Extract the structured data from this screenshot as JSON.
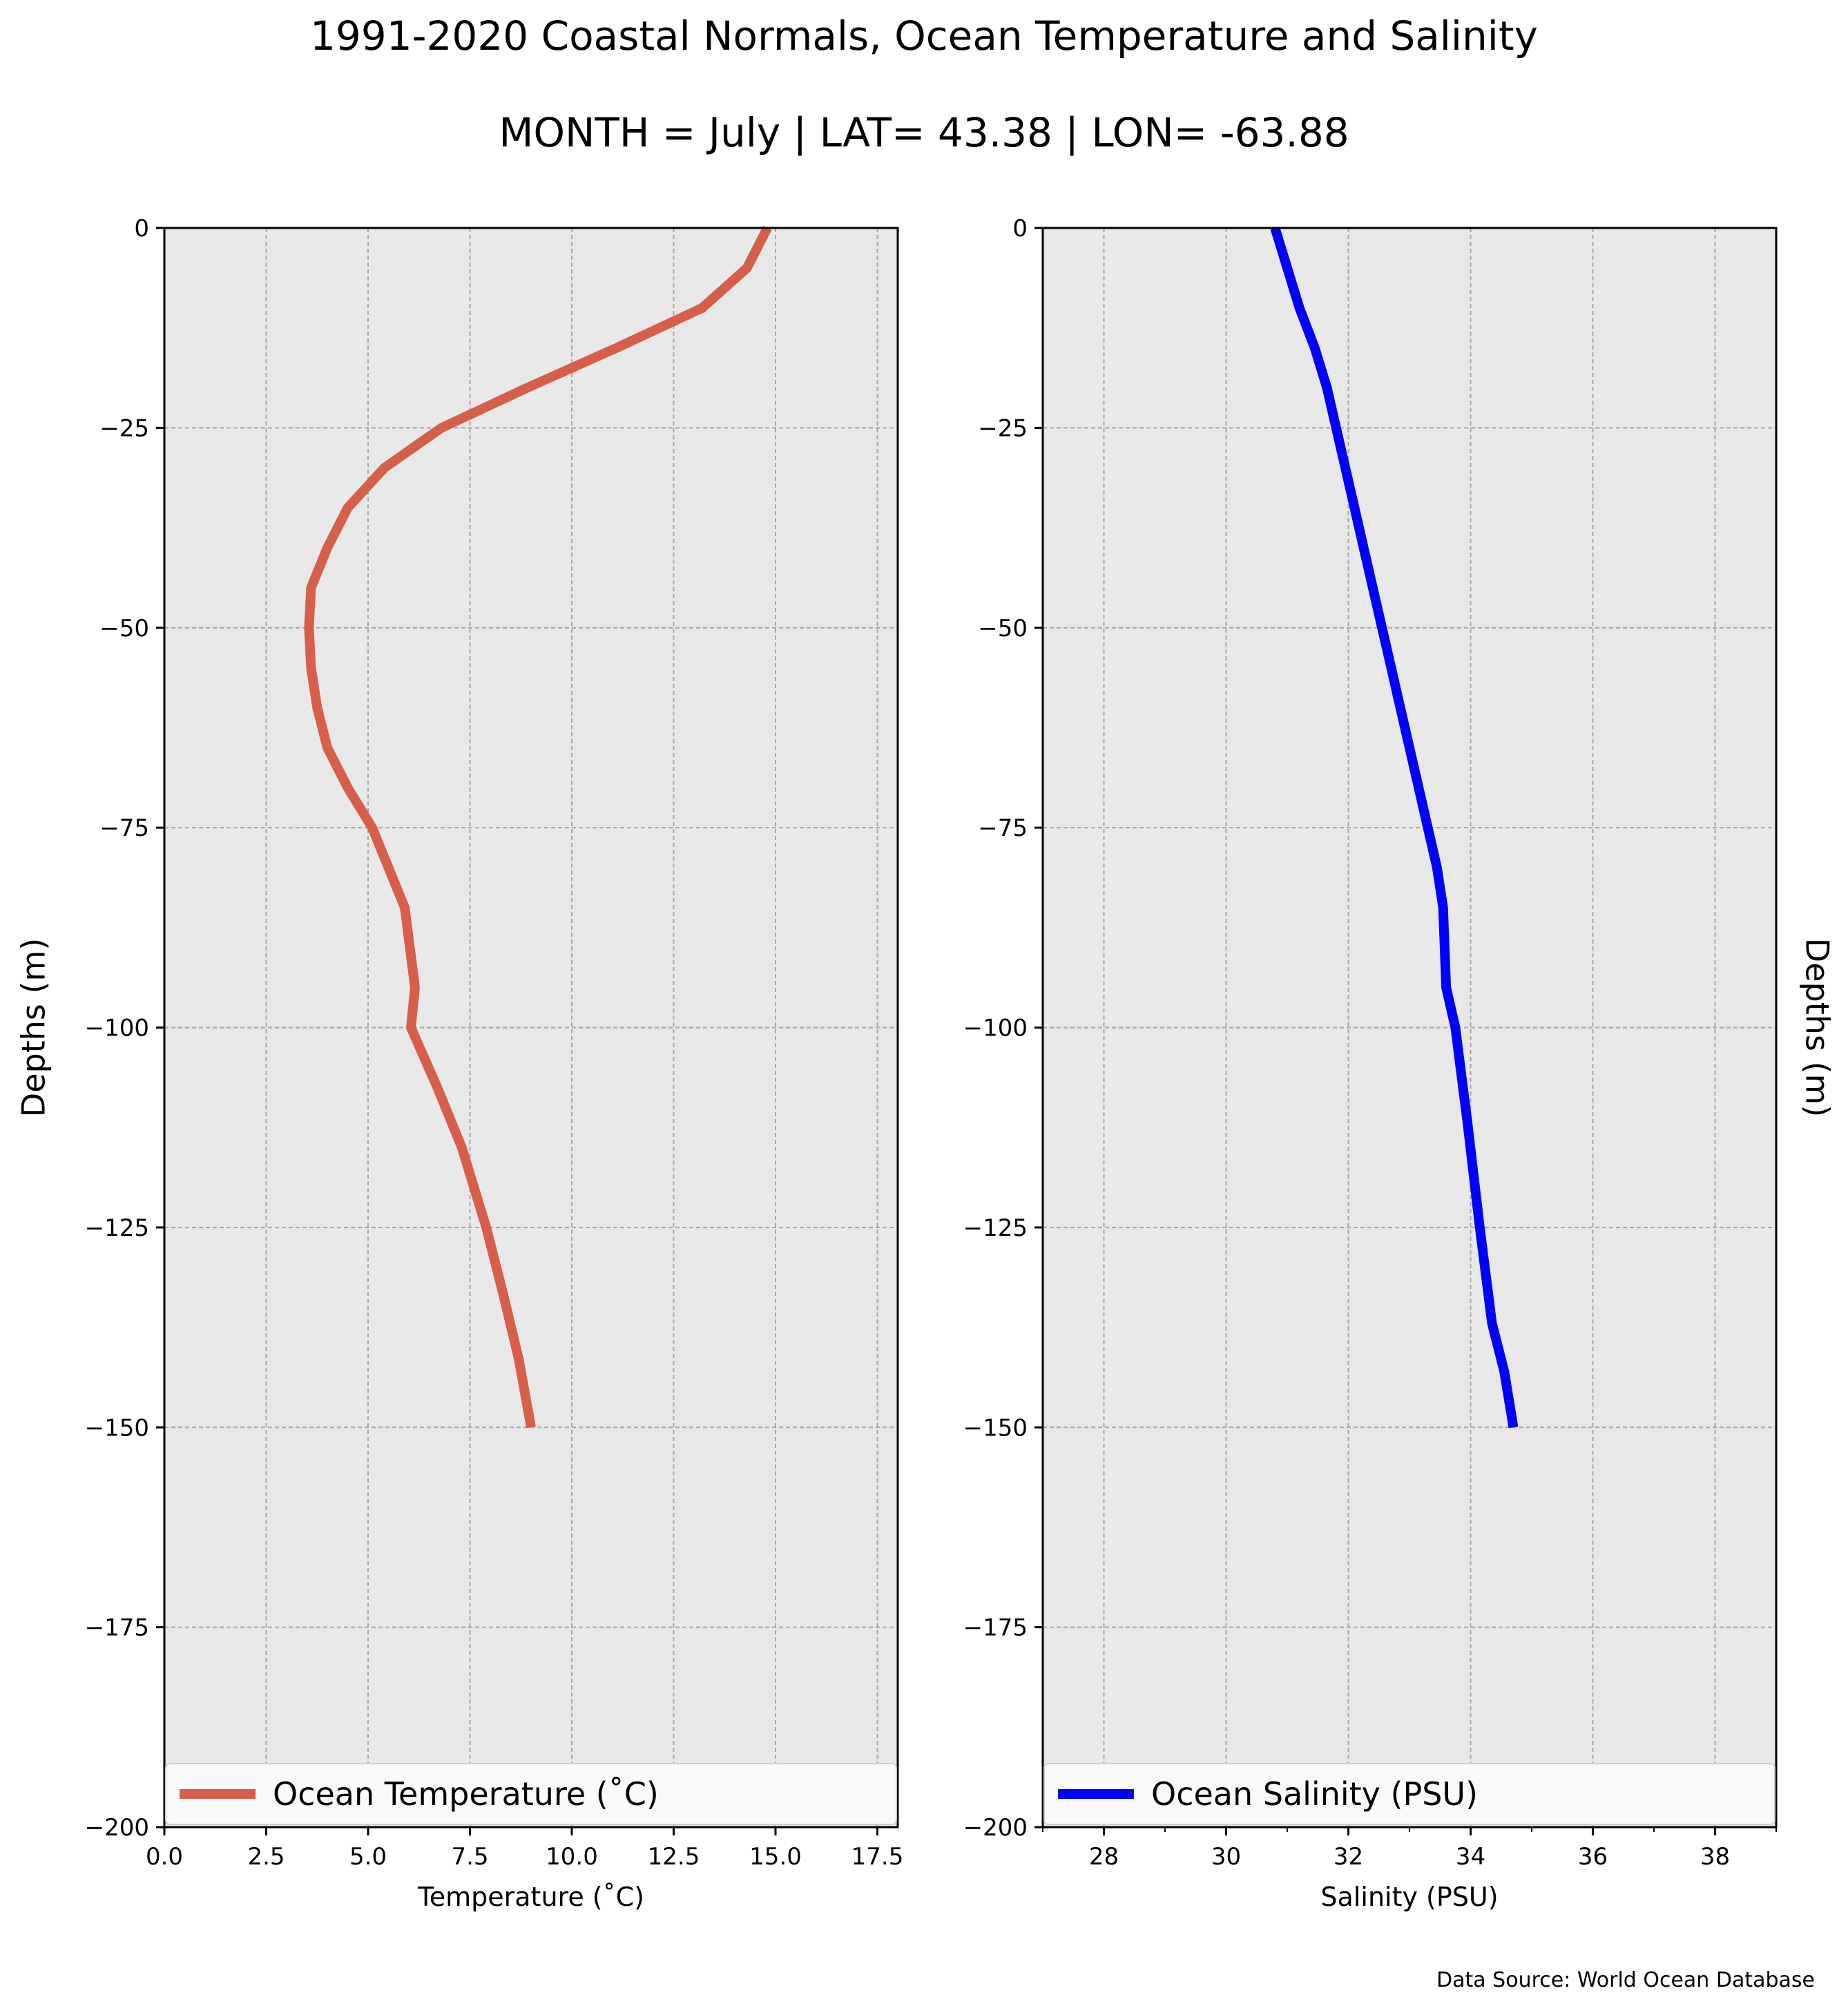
{
  "title": "1991-2020 Coastal Normals, Ocean Temperature and Salinity",
  "subtitle": "MONTH = July | LAT= 43.38 | LON= -63.88",
  "source_note": "Data Source: World Ocean Database",
  "chart_data": [
    {
      "type": "line",
      "xlabel": "Temperature (˚C)",
      "ylabel": "Depths (m)",
      "xlim": [
        0,
        18
      ],
      "ylim": [
        -200,
        0
      ],
      "xticks": [
        0,
        2.5,
        5,
        7.5,
        10,
        12.5,
        15,
        17.5
      ],
      "xtick_labels": [
        "0.0",
        "2.5",
        "5.0",
        "7.5",
        "10.0",
        "12.5",
        "15.0",
        "17.5"
      ],
      "yticks": [
        0,
        -25,
        -50,
        -75,
        -100,
        -125,
        -150,
        -175,
        -200
      ],
      "ytick_labels": [
        "0",
        "−25",
        "−50",
        "−75",
        "−100",
        "−125",
        "−150",
        "−175",
        "−200"
      ],
      "grid": true,
      "legend": "bottom",
      "series": [
        {
          "name": "Ocean Temperature (˚C)",
          "color": "#d65f4c",
          "x": [
            14.8,
            14.3,
            13.2,
            11.1,
            8.9,
            6.8,
            5.4,
            4.5,
            4.0,
            3.6,
            3.55,
            3.6,
            3.75,
            4.0,
            4.5,
            5.1,
            5.5,
            5.9,
            6.15,
            6.05,
            6.7,
            7.3,
            7.9,
            8.3,
            8.7,
            9.0
          ],
          "y": [
            0,
            -5,
            -10,
            -15,
            -20,
            -25,
            -30,
            -35,
            -40,
            -45,
            -50,
            -55,
            -60,
            -65,
            -70,
            -75,
            -80,
            -85,
            -95,
            -100,
            -107.5,
            -115,
            -125,
            -133,
            -141.5,
            -150
          ]
        }
      ]
    },
    {
      "type": "line",
      "xlabel": "Salinity (PSU)",
      "ylabel": "Depths (m)",
      "xlim": [
        27,
        39
      ],
      "ylim": [
        -200,
        0
      ],
      "xticks": [
        28,
        30,
        32,
        34,
        36,
        38
      ],
      "xtick_labels": [
        "28",
        "30",
        "32",
        "34",
        "36",
        "38"
      ],
      "yticks": [
        0,
        -25,
        -50,
        -75,
        -100,
        -125,
        -150,
        -175,
        -200
      ],
      "ytick_labels": [
        "0",
        "−25",
        "−50",
        "−75",
        "−100",
        "−125",
        "−150",
        "−175",
        "−200"
      ],
      "grid": true,
      "legend": "bottom",
      "series": [
        {
          "name": "Ocean Salinity (PSU)",
          "color": "#0000ff",
          "x": [
            30.8,
            31.0,
            31.2,
            31.45,
            31.65,
            31.8,
            31.95,
            32.1,
            32.25,
            32.4,
            32.55,
            32.7,
            32.85,
            33.0,
            33.15,
            33.3,
            33.45,
            33.55,
            33.6,
            33.75,
            33.95,
            34.15,
            34.35,
            34.55,
            34.7
          ],
          "y": [
            0,
            -5,
            -10,
            -15,
            -20,
            -25,
            -30,
            -35,
            -40,
            -45,
            -50,
            -55,
            -60,
            -65,
            -70,
            -75,
            -80,
            -85,
            -95,
            -100,
            -112,
            -125,
            -137,
            -143,
            -150
          ]
        }
      ]
    }
  ]
}
